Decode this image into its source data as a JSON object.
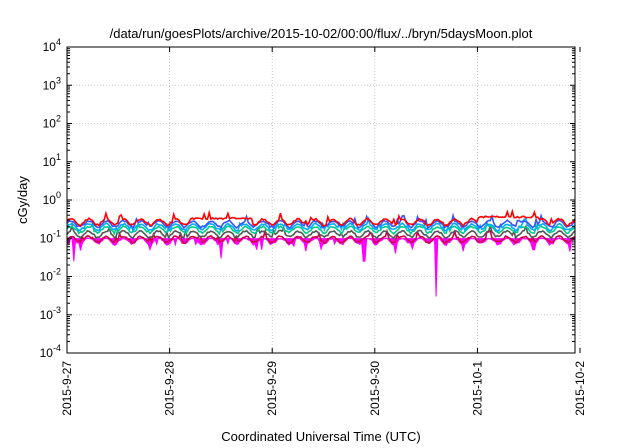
{
  "chart_data": {
    "type": "line",
    "title": "/data/run/goesPlots/archive/2015-10-02/00:00/flux/../bryn/5daysMoon.plot",
    "xlabel": "Coordinated Universal Time (UTC)",
    "ylabel": "cGy/day",
    "yscale": "log",
    "ylim": [
      0.0001,
      10000
    ],
    "xlim": [
      "2015-9-27",
      "2015-10-2 01:30"
    ],
    "grid": true,
    "y_ticks": [
      {
        "value": 0.0001,
        "base": "10",
        "exp": "-4"
      },
      {
        "value": 0.001,
        "base": "10",
        "exp": "-3"
      },
      {
        "value": 0.01,
        "base": "10",
        "exp": "-2"
      },
      {
        "value": 0.1,
        "base": "10",
        "exp": "-1"
      },
      {
        "value": 1,
        "base": "10",
        "exp": "0"
      },
      {
        "value": 10,
        "base": "10",
        "exp": "1"
      },
      {
        "value": 100,
        "base": "10",
        "exp": "2"
      },
      {
        "value": 1000,
        "base": "10",
        "exp": "3"
      },
      {
        "value": 10000,
        "base": "10",
        "exp": "4"
      }
    ],
    "x_ticks": [
      "2015-9-27",
      "2015-9-28",
      "2015-9-29",
      "2015-9-30",
      "2015-10-1",
      "2015-10-2"
    ],
    "series": [
      {
        "color": "#ff00ff",
        "fill": true,
        "base": 0.085,
        "dips": [
          [
            0.07,
            0.025
          ],
          [
            1.5,
            0.03
          ],
          [
            1.9,
            0.05
          ],
          [
            2.9,
            0.025
          ],
          [
            3.2,
            0.04
          ],
          [
            3.6,
            0.003
          ],
          [
            4.55,
            0.05
          ],
          [
            4.9,
            0.045
          ]
        ]
      },
      {
        "color": "#cc0044",
        "base": 0.095,
        "dips": []
      },
      {
        "color": "#555555",
        "base": 0.13,
        "dips": []
      },
      {
        "color": "#00cc88",
        "base": 0.17,
        "dips": []
      },
      {
        "color": "#00aaff",
        "base": 0.2,
        "dips": []
      },
      {
        "color": "#3355ff",
        "base": 0.24,
        "dips": []
      },
      {
        "color": "#ff0000",
        "base": 0.27,
        "bumps": [
          [
            1.2,
            1.8,
            0.33
          ],
          [
            4.0,
            4.6,
            0.36
          ]
        ]
      }
    ]
  }
}
